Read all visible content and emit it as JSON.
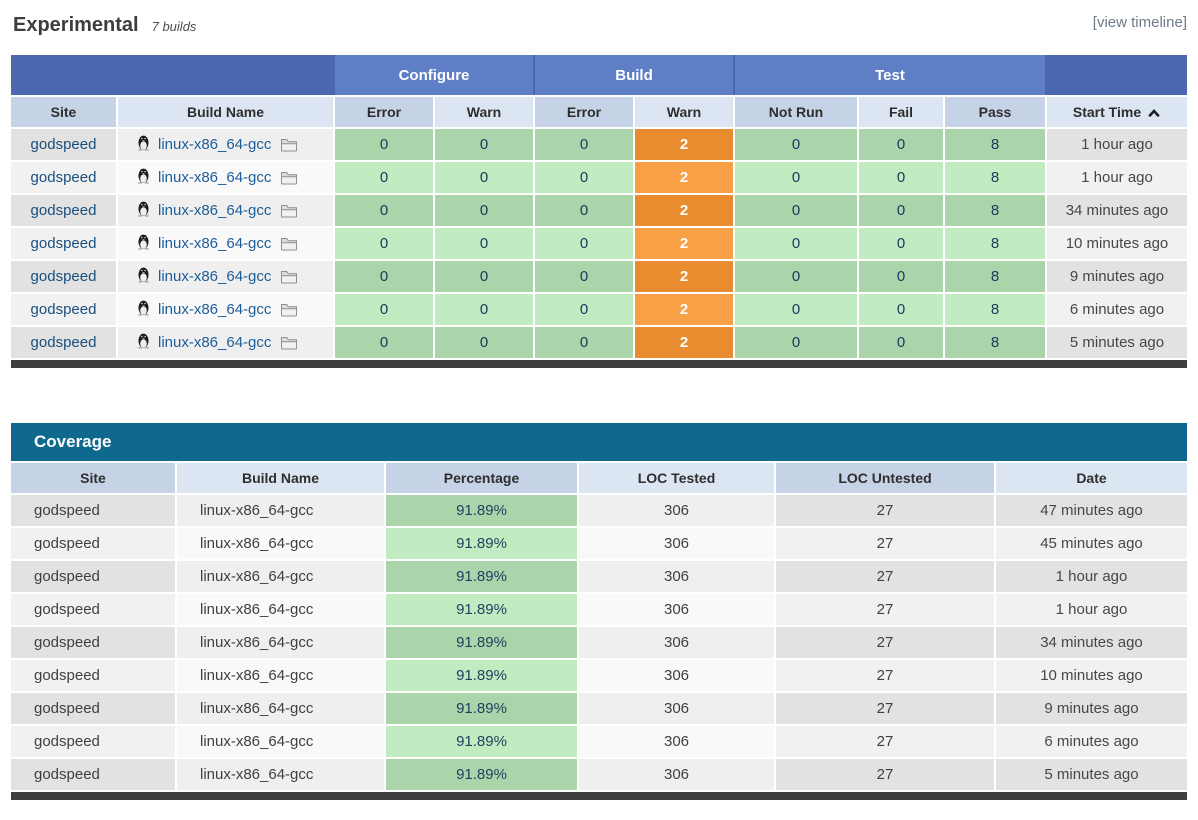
{
  "header": {
    "title": "Experimental",
    "build_count": "7 builds",
    "view_timeline_label": "[view timeline]"
  },
  "experimental_table": {
    "groups": [
      "Configure",
      "Build",
      "Test"
    ],
    "columns": [
      "Site",
      "Build Name",
      "Error",
      "Warn",
      "Error",
      "Warn",
      "Not Run",
      "Fail",
      "Pass",
      "Start Time"
    ],
    "sort": {
      "column": "Start Time",
      "direction": "ascending",
      "icon": "caret-up-icon"
    },
    "icons": {
      "platform": "linux-tux-icon",
      "folder": "folder-icon"
    },
    "rows": [
      {
        "site": "godspeed",
        "build_name": "linux-x86_64-gcc",
        "configure_error": "0",
        "configure_warn": "0",
        "build_error": "0",
        "build_warn": "2",
        "not_run": "0",
        "fail": "0",
        "pass": "8",
        "start_time": "1 hour ago"
      },
      {
        "site": "godspeed",
        "build_name": "linux-x86_64-gcc",
        "configure_error": "0",
        "configure_warn": "0",
        "build_error": "0",
        "build_warn": "2",
        "not_run": "0",
        "fail": "0",
        "pass": "8",
        "start_time": "1 hour ago"
      },
      {
        "site": "godspeed",
        "build_name": "linux-x86_64-gcc",
        "configure_error": "0",
        "configure_warn": "0",
        "build_error": "0",
        "build_warn": "2",
        "not_run": "0",
        "fail": "0",
        "pass": "8",
        "start_time": "34 minutes ago"
      },
      {
        "site": "godspeed",
        "build_name": "linux-x86_64-gcc",
        "configure_error": "0",
        "configure_warn": "0",
        "build_error": "0",
        "build_warn": "2",
        "not_run": "0",
        "fail": "0",
        "pass": "8",
        "start_time": "10 minutes ago"
      },
      {
        "site": "godspeed",
        "build_name": "linux-x86_64-gcc",
        "configure_error": "0",
        "configure_warn": "0",
        "build_error": "0",
        "build_warn": "2",
        "not_run": "0",
        "fail": "0",
        "pass": "8",
        "start_time": "9 minutes ago"
      },
      {
        "site": "godspeed",
        "build_name": "linux-x86_64-gcc",
        "configure_error": "0",
        "configure_warn": "0",
        "build_error": "0",
        "build_warn": "2",
        "not_run": "0",
        "fail": "0",
        "pass": "8",
        "start_time": "6 minutes ago"
      },
      {
        "site": "godspeed",
        "build_name": "linux-x86_64-gcc",
        "configure_error": "0",
        "configure_warn": "0",
        "build_error": "0",
        "build_warn": "2",
        "not_run": "0",
        "fail": "0",
        "pass": "8",
        "start_time": "5 minutes ago"
      }
    ]
  },
  "coverage_table": {
    "title": "Coverage",
    "columns": [
      "Site",
      "Build Name",
      "Percentage",
      "LOC Tested",
      "LOC Untested",
      "Date"
    ],
    "rows": [
      {
        "site": "godspeed",
        "build_name": "linux-x86_64-gcc",
        "percentage": "91.89%",
        "loc_tested": "306",
        "loc_untested": "27",
        "date": "47 minutes ago"
      },
      {
        "site": "godspeed",
        "build_name": "linux-x86_64-gcc",
        "percentage": "91.89%",
        "loc_tested": "306",
        "loc_untested": "27",
        "date": "45 minutes ago"
      },
      {
        "site": "godspeed",
        "build_name": "linux-x86_64-gcc",
        "percentage": "91.89%",
        "loc_tested": "306",
        "loc_untested": "27",
        "date": "1 hour ago"
      },
      {
        "site": "godspeed",
        "build_name": "linux-x86_64-gcc",
        "percentage": "91.89%",
        "loc_tested": "306",
        "loc_untested": "27",
        "date": "1 hour ago"
      },
      {
        "site": "godspeed",
        "build_name": "linux-x86_64-gcc",
        "percentage": "91.89%",
        "loc_tested": "306",
        "loc_untested": "27",
        "date": "34 minutes ago"
      },
      {
        "site": "godspeed",
        "build_name": "linux-x86_64-gcc",
        "percentage": "91.89%",
        "loc_tested": "306",
        "loc_untested": "27",
        "date": "10 minutes ago"
      },
      {
        "site": "godspeed",
        "build_name": "linux-x86_64-gcc",
        "percentage": "91.89%",
        "loc_tested": "306",
        "loc_untested": "27",
        "date": "9 minutes ago"
      },
      {
        "site": "godspeed",
        "build_name": "linux-x86_64-gcc",
        "percentage": "91.89%",
        "loc_tested": "306",
        "loc_untested": "27",
        "date": "6 minutes ago"
      },
      {
        "site": "godspeed",
        "build_name": "linux-x86_64-gcc",
        "percentage": "91.89%",
        "loc_tested": "306",
        "loc_untested": "27",
        "date": "5 minutes ago"
      }
    ]
  },
  "colors": {
    "group_base": "#4b67ad",
    "group_box": "#5e7ec6",
    "sub_dark": "#c6d3e6",
    "sub_light": "#dce6f3",
    "green_odd": "#abd4ab",
    "green_even": "#c1ebc1",
    "orange_odd": "#e98c30",
    "orange_even": "#f7a045",
    "coverage_teal": "#0f698e",
    "footer_bar": "#3f3f3f",
    "site_link": "#194f7d",
    "link_blue": "#1d5d99",
    "number_text": "#17395e"
  }
}
